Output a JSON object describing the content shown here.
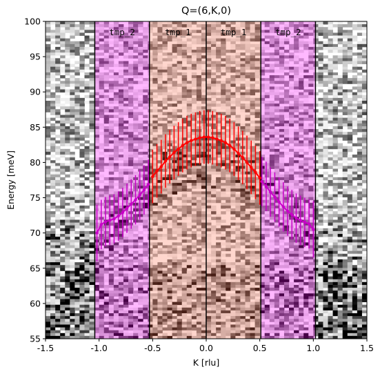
{
  "chart_data": {
    "type": "heatmap",
    "title": "Q=(6,K,0)",
    "xlabel": "K [rlu]",
    "ylabel": "Energy [meV]",
    "xlim": [
      -1.5,
      1.5
    ],
    "ylim": [
      55,
      100
    ],
    "x_ticks": [
      "-1.5",
      "-1.0",
      "-0.5",
      "0.0",
      "0.5",
      "1.0",
      "1.5"
    ],
    "y_ticks": [
      "55",
      "60",
      "65",
      "70",
      "75",
      "80",
      "85",
      "90",
      "95",
      "100"
    ],
    "grid": false,
    "colormap": "grayscale intensity map",
    "region_boundaries": [
      -1.04,
      -0.53,
      0.0,
      0.51,
      1.02
    ],
    "regions": [
      {
        "label": "tmp_2",
        "x_range": [
          -1.04,
          -0.53
        ],
        "color": "#ff00ff"
      },
      {
        "label": "tmp_1",
        "x_range": [
          -0.53,
          0.0
        ],
        "color": "#ff6a4d"
      },
      {
        "label": "tmp_1",
        "x_range": [
          0.0,
          0.51
        ],
        "color": "#ff6a4d"
      },
      {
        "label": "tmp_2",
        "x_range": [
          0.51,
          1.02
        ],
        "color": "#ff00ff"
      }
    ],
    "dispersion_model": {
      "peak_energy_meV": 83.5,
      "center_K": 0.0,
      "curvature_meV_per_rlu2": 12.0
    },
    "series": [
      {
        "color": "#ff0000",
        "points": [
          {
            "k": -0.5,
            "e": 78.0,
            "err": 3.8
          },
          {
            "k": -0.46,
            "e": 78.8,
            "err": 3.8
          },
          {
            "k": -0.42,
            "e": 79.4,
            "err": 3.8
          },
          {
            "k": -0.38,
            "e": 80.2,
            "err": 3.8
          },
          {
            "k": -0.34,
            "e": 80.8,
            "err": 3.8
          },
          {
            "k": -0.3,
            "e": 81.4,
            "err": 3.8
          },
          {
            "k": -0.26,
            "e": 81.9,
            "err": 3.8
          },
          {
            "k": -0.22,
            "e": 82.4,
            "err": 3.8
          },
          {
            "k": -0.18,
            "e": 82.8,
            "err": 3.8
          },
          {
            "k": -0.14,
            "e": 83.1,
            "err": 3.8
          },
          {
            "k": -0.1,
            "e": 83.3,
            "err": 3.8
          },
          {
            "k": -0.06,
            "e": 83.5,
            "err": 3.8
          },
          {
            "k": -0.02,
            "e": 83.6,
            "err": 3.8
          },
          {
            "k": 0.02,
            "e": 83.6,
            "err": 3.8
          },
          {
            "k": 0.06,
            "e": 83.5,
            "err": 3.8
          },
          {
            "k": 0.1,
            "e": 83.3,
            "err": 3.8
          },
          {
            "k": 0.14,
            "e": 83.1,
            "err": 3.8
          },
          {
            "k": 0.18,
            "e": 82.8,
            "err": 3.8
          },
          {
            "k": 0.22,
            "e": 82.4,
            "err": 3.8
          },
          {
            "k": 0.26,
            "e": 81.9,
            "err": 3.8
          },
          {
            "k": 0.3,
            "e": 81.3,
            "err": 3.8
          },
          {
            "k": 0.34,
            "e": 80.7,
            "err": 3.8
          },
          {
            "k": 0.38,
            "e": 80.0,
            "err": 3.8
          },
          {
            "k": 0.42,
            "e": 79.3,
            "err": 3.8
          },
          {
            "k": 0.46,
            "e": 78.6,
            "err": 3.8
          },
          {
            "k": 0.5,
            "e": 77.8,
            "err": 3.8
          }
        ]
      },
      {
        "color": "#c800c8",
        "points": [
          {
            "k": -1.02,
            "e": 70.0,
            "err": 4.0
          },
          {
            "k": -0.98,
            "e": 71.2,
            "err": 3.5
          },
          {
            "k": -0.94,
            "e": 71.6,
            "err": 3.5
          },
          {
            "k": -0.9,
            "e": 71.8,
            "err": 3.5
          },
          {
            "k": -0.86,
            "e": 72.0,
            "err": 3.5
          },
          {
            "k": -0.82,
            "e": 72.4,
            "err": 3.5
          },
          {
            "k": -0.78,
            "e": 72.9,
            "err": 3.5
          },
          {
            "k": -0.74,
            "e": 73.5,
            "err": 3.5
          },
          {
            "k": -0.7,
            "e": 74.1,
            "err": 3.5
          },
          {
            "k": -0.66,
            "e": 74.7,
            "err": 3.5
          },
          {
            "k": -0.62,
            "e": 75.4,
            "err": 3.5
          },
          {
            "k": -0.58,
            "e": 76.1,
            "err": 3.5
          },
          {
            "k": -0.54,
            "e": 76.9,
            "err": 3.5
          },
          {
            "k": 0.52,
            "e": 77.3,
            "err": 3.5
          },
          {
            "k": 0.56,
            "e": 76.6,
            "err": 3.5
          },
          {
            "k": 0.6,
            "e": 75.8,
            "err": 3.5
          },
          {
            "k": 0.64,
            "e": 75.1,
            "err": 3.5
          },
          {
            "k": 0.68,
            "e": 74.4,
            "err": 3.5
          },
          {
            "k": 0.72,
            "e": 73.7,
            "err": 3.5
          },
          {
            "k": 0.76,
            "e": 73.1,
            "err": 3.5
          },
          {
            "k": 0.8,
            "e": 72.6,
            "err": 3.5
          },
          {
            "k": 0.84,
            "e": 72.1,
            "err": 3.5
          },
          {
            "k": 0.88,
            "e": 71.8,
            "err": 3.5
          },
          {
            "k": 0.92,
            "e": 71.5,
            "err": 3.5
          },
          {
            "k": 0.96,
            "e": 71.3,
            "err": 3.5
          },
          {
            "k": 1.0,
            "e": 70.5,
            "err": 4.0
          }
        ]
      }
    ]
  }
}
